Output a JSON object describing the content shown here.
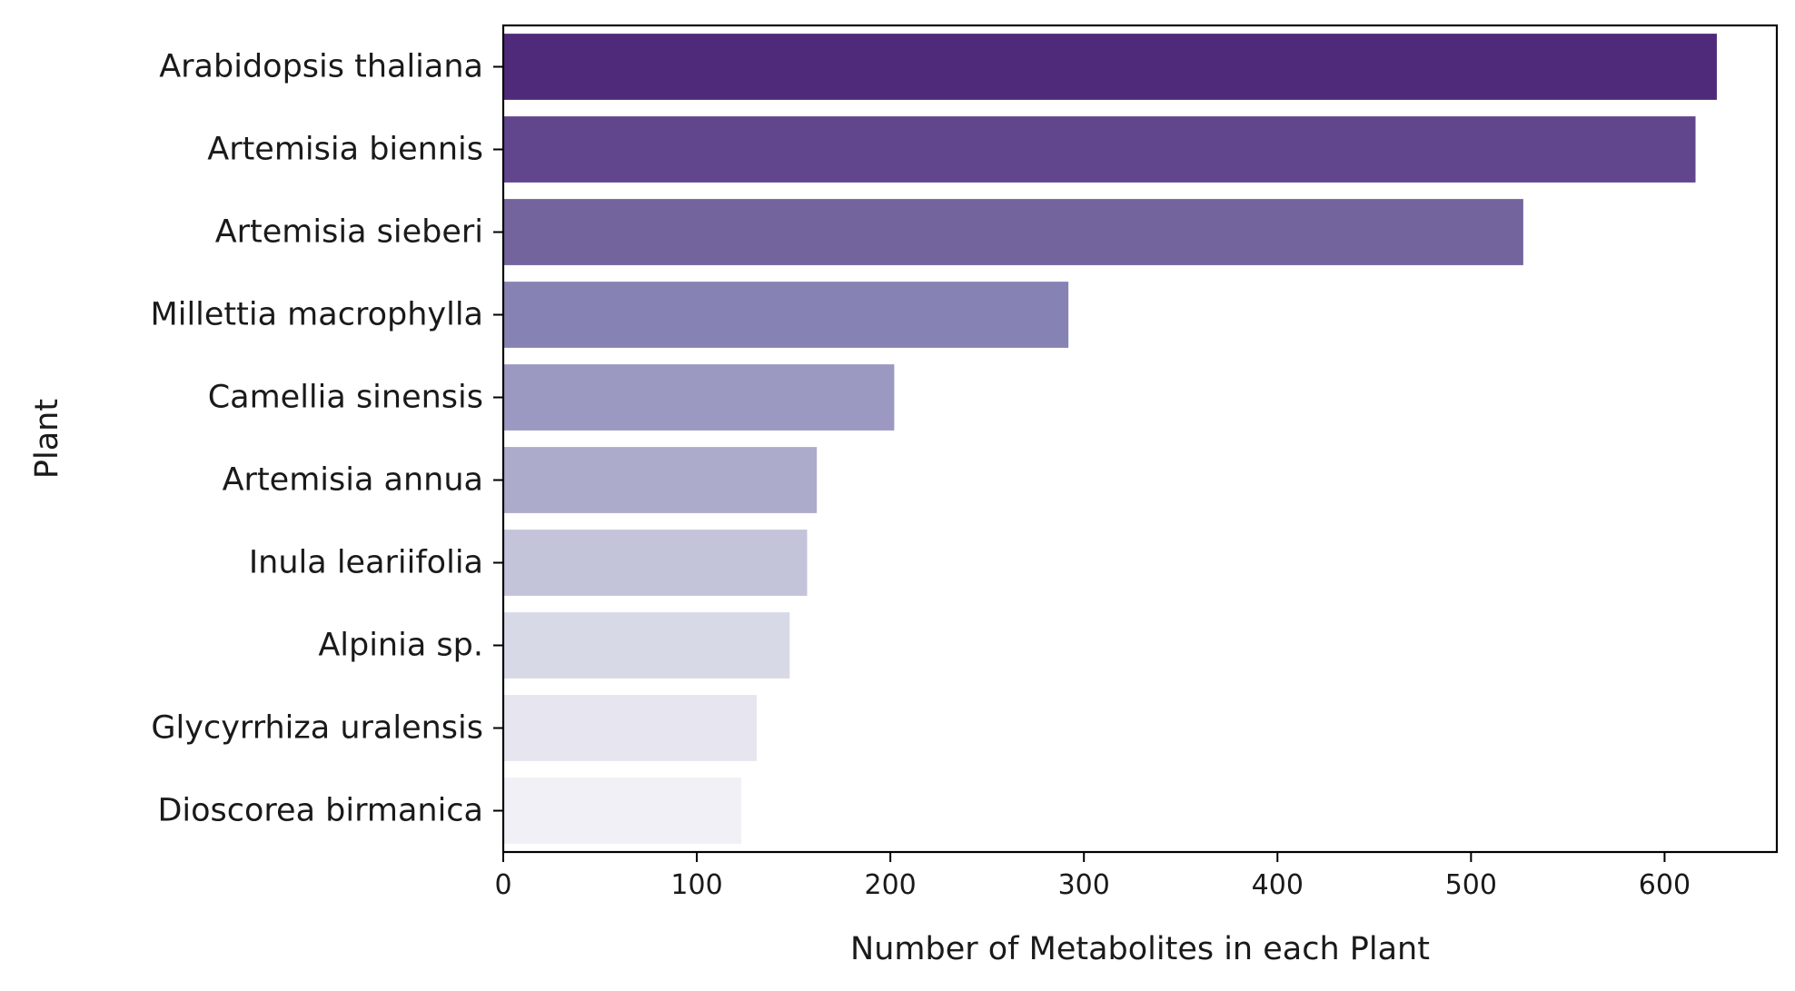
{
  "chart_data": {
    "type": "bar",
    "orientation": "horizontal",
    "xlabel": "Number of Metabolites in each Plant",
    "ylabel": "Plant",
    "xlim": [
      0,
      658
    ],
    "xticks": [
      0,
      100,
      200,
      300,
      400,
      500,
      600
    ],
    "grid": false,
    "legend": "none",
    "categories": [
      "Arabidopsis thaliana",
      "Artemisia biennis",
      "Artemisia sieberi",
      "Millettia macrophylla",
      "Camellia sinensis",
      "Artemisia annua",
      "Inula leariifolia",
      "Alpinia sp.",
      "Glycyrrhiza uralensis",
      "Dioscorea birmanica"
    ],
    "values": [
      627,
      616,
      527,
      292,
      202,
      162,
      157,
      148,
      131,
      123
    ],
    "colors": [
      "#4f2a7a",
      "#61468e",
      "#73649d",
      "#8683b4",
      "#9b98c1",
      "#adabcc",
      "#c3c3da",
      "#d8d9e7",
      "#e7e5f0",
      "#f1f0f6"
    ]
  }
}
